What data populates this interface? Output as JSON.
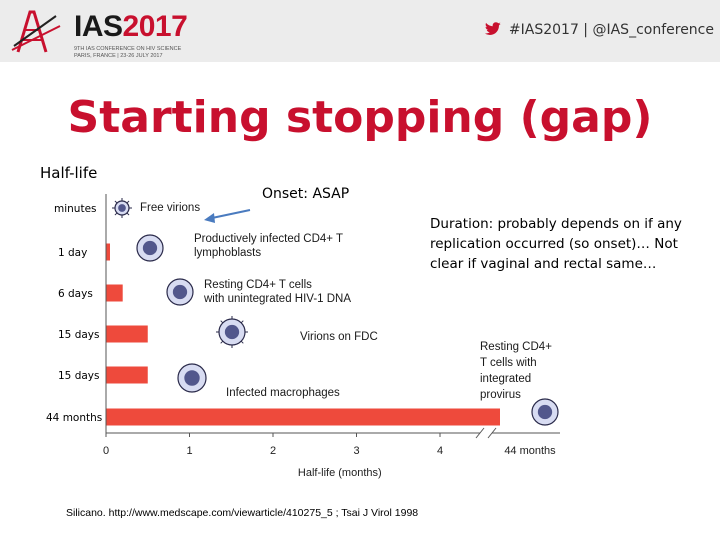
{
  "header": {
    "logo_name": "IAS",
    "logo_year": "2017",
    "logo_line1": "9TH IAS CONFERENCE ON HIV SCIENCE",
    "logo_line2": "PARIS, FRANCE | 23-26 JULY 2017",
    "social_text": "#IAS2017 | @IAS_conference",
    "brand_color": "#c8102e"
  },
  "slide": {
    "title": "Starting stopping (gap)",
    "halflife_label": "Half-life",
    "onset_note": "Onset: ASAP",
    "duration_note": "Duration: probably depends on if any replication occurred (so onset)… Not clear if vaginal and rectal same…",
    "citation": "Silicano. http://www.medscape.com/viewarticle/410275_5 ; Tsai J Virol 1998"
  },
  "chart_data": {
    "type": "bar",
    "orientation": "horizontal",
    "title": "",
    "xlabel": "Half-life (months)",
    "xlim": [
      0,
      5
    ],
    "x_tick_labels": [
      "0",
      "1",
      "2",
      "3",
      "4",
      "44 months"
    ],
    "bar_color": "#ee4a3c",
    "row_labels": [
      "minutes",
      "1 day",
      "6 days",
      "15 days",
      "15 days",
      "44 months"
    ],
    "categories": [
      "Free virions",
      "Productively infected CD4+ T lymphoblasts",
      "Resting CD4+ T cells with unintegrated HIV-1 DNA",
      "Virions on FDC",
      "Infected macrophages",
      "Resting CD4+ T cells with integrated provirus"
    ],
    "values": [
      0.0,
      0.03,
      0.2,
      0.5,
      0.5,
      44
    ],
    "axis_break": true
  }
}
